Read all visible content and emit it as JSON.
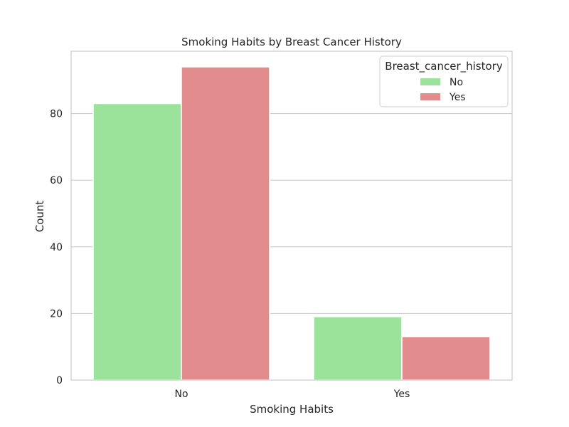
{
  "chart_data": {
    "type": "bar",
    "title": "Smoking Habits by Breast Cancer History",
    "xlabel": "Smoking Habits",
    "ylabel": "Count",
    "categories": [
      "No",
      "Yes"
    ],
    "series": [
      {
        "name": "No",
        "values": [
          83,
          19
        ],
        "color": "#9be39b"
      },
      {
        "name": "Yes",
        "values": [
          94,
          13
        ],
        "color": "#e38c8e"
      }
    ],
    "ylim": [
      0,
      98.7
    ],
    "yticks": [
      0,
      20,
      40,
      60,
      80
    ],
    "grid": true,
    "legend": {
      "title": "Breast_cancer_history",
      "placement": "top-right"
    }
  }
}
